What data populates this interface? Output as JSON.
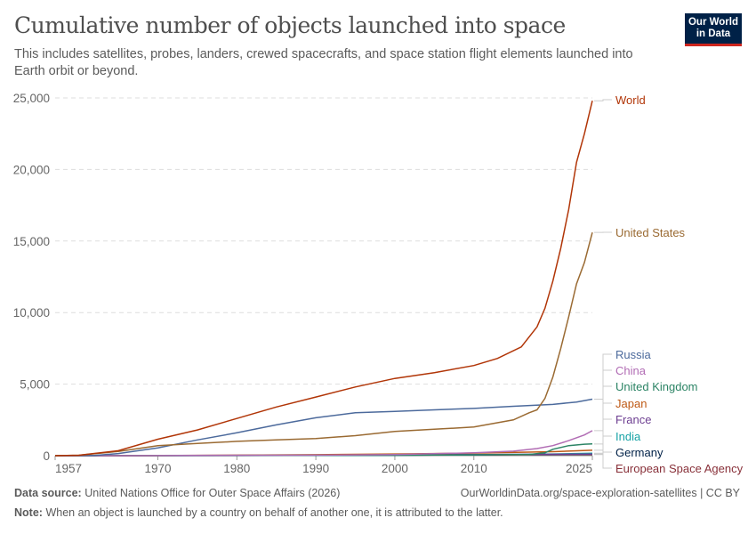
{
  "header": {
    "title": "Cumulative number of objects launched into space",
    "subtitle": "This includes satellites, probes, landers, crewed spacecrafts, and space station flight elements launched into Earth orbit or beyond.",
    "logo": "Our World in Data"
  },
  "footer": {
    "source_label": "Data source:",
    "source": "United Nations Office for Outer Space Affairs (2026)",
    "url": "OurWorldinData.org/space-exploration-satellites | CC BY",
    "note_label": "Note:",
    "note": "When an object is launched by a country on behalf of another one, it is attributed to the latter."
  },
  "chart_data": {
    "type": "line",
    "title": "Cumulative number of objects launched into space",
    "xlim": [
      1957,
      2025
    ],
    "ylim": [
      0,
      25000
    ],
    "x_ticks": [
      1957,
      1970,
      1980,
      1990,
      2000,
      2010,
      2025
    ],
    "y_ticks": [
      0,
      5000,
      10000,
      15000,
      20000,
      25000
    ],
    "y_tick_labels": [
      "0",
      "5,000",
      "10,000",
      "15,000",
      "20,000",
      "25,000"
    ],
    "grid": "horizontal dashed",
    "legend": "right, line-end labels",
    "series": [
      {
        "name": "World",
        "color": "#b13507",
        "points": [
          [
            1957,
            0
          ],
          [
            1960,
            30
          ],
          [
            1965,
            350
          ],
          [
            1970,
            1150
          ],
          [
            1975,
            1800
          ],
          [
            1980,
            2600
          ],
          [
            1985,
            3400
          ],
          [
            1990,
            4100
          ],
          [
            1995,
            4800
          ],
          [
            2000,
            5400
          ],
          [
            2005,
            5800
          ],
          [
            2010,
            6300
          ],
          [
            2013,
            6800
          ],
          [
            2016,
            7600
          ],
          [
            2018,
            9000
          ],
          [
            2019,
            10300
          ],
          [
            2020,
            12200
          ],
          [
            2021,
            14500
          ],
          [
            2022,
            17200
          ],
          [
            2023,
            20500
          ],
          [
            2024,
            22500
          ],
          [
            2025,
            24800
          ]
        ]
      },
      {
        "name": "United States",
        "color": "#9a6a32",
        "points": [
          [
            1957,
            0
          ],
          [
            1960,
            30
          ],
          [
            1965,
            300
          ],
          [
            1970,
            700
          ],
          [
            1975,
            850
          ],
          [
            1980,
            1000
          ],
          [
            1985,
            1100
          ],
          [
            1990,
            1200
          ],
          [
            1995,
            1400
          ],
          [
            2000,
            1700
          ],
          [
            2005,
            1850
          ],
          [
            2010,
            2000
          ],
          [
            2015,
            2500
          ],
          [
            2017,
            3000
          ],
          [
            2018,
            3200
          ],
          [
            2019,
            4000
          ],
          [
            2020,
            5500
          ],
          [
            2021,
            7500
          ],
          [
            2022,
            9700
          ],
          [
            2023,
            12000
          ],
          [
            2024,
            13500
          ],
          [
            2025,
            15600
          ]
        ]
      },
      {
        "name": "Russia",
        "color": "#4c6a9c",
        "points": [
          [
            1957,
            0
          ],
          [
            1962,
            20
          ],
          [
            1965,
            150
          ],
          [
            1970,
            550
          ],
          [
            1975,
            1100
          ],
          [
            1980,
            1600
          ],
          [
            1985,
            2150
          ],
          [
            1990,
            2650
          ],
          [
            1995,
            3000
          ],
          [
            2000,
            3100
          ],
          [
            2005,
            3200
          ],
          [
            2010,
            3300
          ],
          [
            2015,
            3450
          ],
          [
            2020,
            3580
          ],
          [
            2023,
            3750
          ],
          [
            2025,
            3950
          ]
        ]
      },
      {
        "name": "China",
        "color": "#b16cb4",
        "points": [
          [
            1957,
            0
          ],
          [
            1970,
            5
          ],
          [
            1990,
            40
          ],
          [
            2000,
            80
          ],
          [
            2010,
            200
          ],
          [
            2015,
            320
          ],
          [
            2018,
            500
          ],
          [
            2020,
            700
          ],
          [
            2022,
            1050
          ],
          [
            2024,
            1450
          ],
          [
            2025,
            1750
          ]
        ]
      },
      {
        "name": "United Kingdom",
        "color": "#2c8465",
        "points": [
          [
            1957,
            0
          ],
          [
            2000,
            40
          ],
          [
            2010,
            60
          ],
          [
            2017,
            90
          ],
          [
            2019,
            200
          ],
          [
            2020,
            450
          ],
          [
            2022,
            700
          ],
          [
            2024,
            800
          ],
          [
            2025,
            820
          ]
        ]
      },
      {
        "name": "Japan",
        "color": "#be5915",
        "points": [
          [
            1957,
            0
          ],
          [
            1970,
            5
          ],
          [
            1990,
            70
          ],
          [
            2000,
            120
          ],
          [
            2010,
            180
          ],
          [
            2020,
            280
          ],
          [
            2025,
            380
          ]
        ]
      },
      {
        "name": "France",
        "color": "#6d3e91",
        "points": [
          [
            1957,
            0
          ],
          [
            1970,
            10
          ],
          [
            1990,
            40
          ],
          [
            2010,
            80
          ],
          [
            2025,
            110
          ]
        ]
      },
      {
        "name": "India",
        "color": "#18a3a6",
        "points": [
          [
            1957,
            0
          ],
          [
            1980,
            5
          ],
          [
            2000,
            30
          ],
          [
            2010,
            60
          ],
          [
            2020,
            120
          ],
          [
            2025,
            170
          ]
        ]
      },
      {
        "name": "Germany",
        "color": "#002147",
        "points": [
          [
            1957,
            0
          ],
          [
            1970,
            5
          ],
          [
            2000,
            30
          ],
          [
            2025,
            100
          ]
        ]
      },
      {
        "name": "European Space Agency",
        "color": "#883039",
        "points": [
          [
            1957,
            0
          ],
          [
            1975,
            5
          ],
          [
            2000,
            40
          ],
          [
            2025,
            80
          ]
        ]
      }
    ]
  }
}
